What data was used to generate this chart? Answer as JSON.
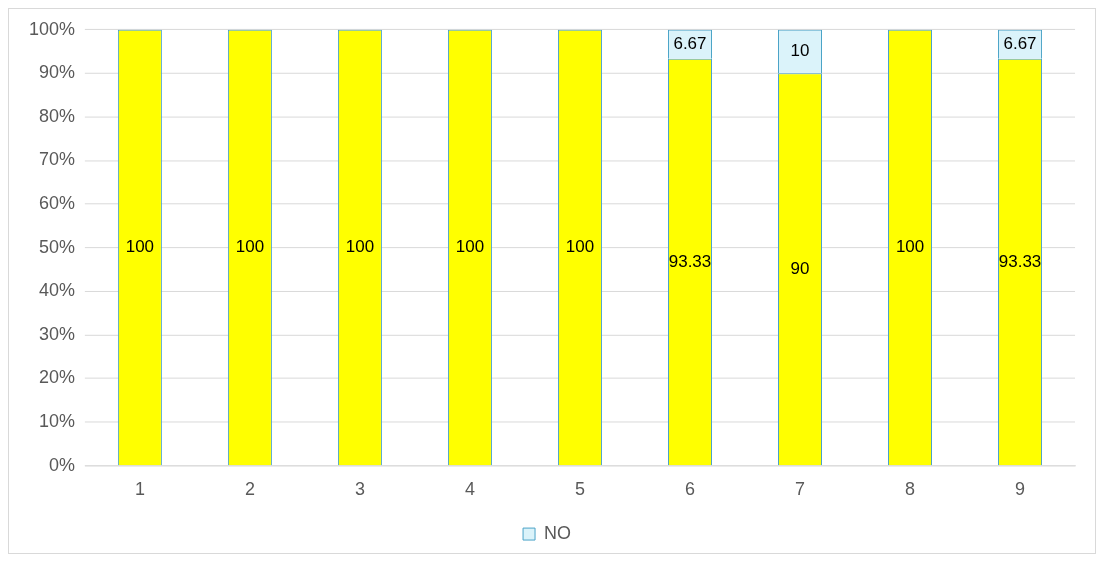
{
  "chart_data": {
    "type": "bar",
    "stacked": true,
    "categories": [
      "1",
      "2",
      "3",
      "4",
      "5",
      "6",
      "7",
      "8",
      "9"
    ],
    "series": [
      {
        "color": "#ffff00",
        "values": [
          100,
          100,
          100,
          100,
          100,
          93.33,
          90,
          100,
          93.33
        ],
        "value_labels": [
          "100",
          "100",
          "100",
          "100",
          "100",
          "93.33",
          "90",
          "100",
          "93.33"
        ]
      },
      {
        "name": "NO",
        "color": "#dbf3fa",
        "values": [
          0,
          0,
          0,
          0,
          0,
          6.67,
          10,
          0,
          6.67
        ],
        "value_labels": [
          null,
          null,
          null,
          null,
          null,
          "6.67",
          "10",
          null,
          "6.67"
        ]
      }
    ],
    "ylim": [
      0,
      100
    ],
    "yticks": [
      {
        "value": 0,
        "label": "0%"
      },
      {
        "value": 10,
        "label": "10%"
      },
      {
        "value": 20,
        "label": "20%"
      },
      {
        "value": 30,
        "label": "30%"
      },
      {
        "value": 40,
        "label": "40%"
      },
      {
        "value": 50,
        "label": "50%"
      },
      {
        "value": 60,
        "label": "60%"
      },
      {
        "value": 70,
        "label": "70%"
      },
      {
        "value": 80,
        "label": "80%"
      },
      {
        "value": 90,
        "label": "90%"
      },
      {
        "value": 100,
        "label": "100%"
      }
    ],
    "grid": "y",
    "legend": "bottom"
  }
}
